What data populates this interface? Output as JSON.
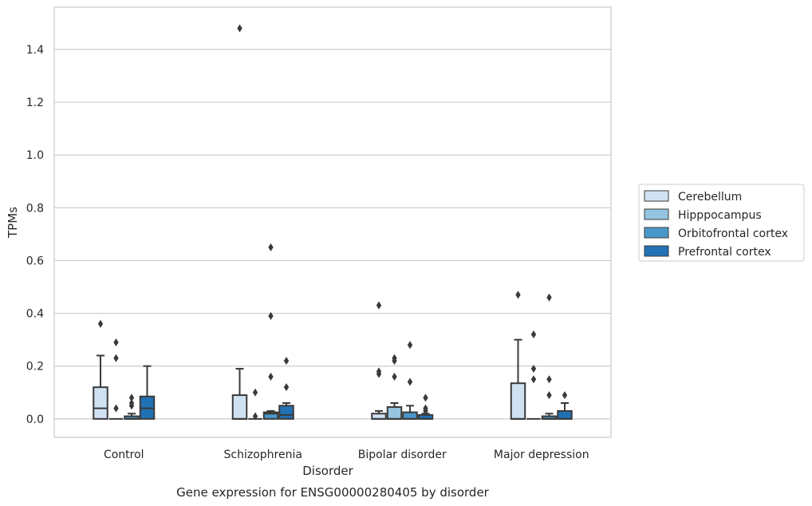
{
  "chart_data": {
    "type": "box",
    "title": "Gene expression for ENSG00000280405 by disorder",
    "xlabel": "Disorder",
    "ylabel": "TPMs",
    "ylim": [
      -0.07,
      1.56
    ],
    "yticks": [
      0.0,
      0.2,
      0.4,
      0.6,
      0.8,
      1.0,
      1.2,
      1.4
    ],
    "ytick_labels": [
      "0.0",
      "0.2",
      "0.4",
      "0.6",
      "0.8",
      "1.0",
      "1.2",
      "1.4"
    ],
    "grid": true,
    "legend_position": "right",
    "categories": [
      "Control",
      "Schizophrenia",
      "Bipolar disorder",
      "Major depression"
    ],
    "series": [
      {
        "name": "Cerebellum",
        "color": "#d0e1f2",
        "boxes": [
          {
            "q1": 0.0,
            "median": 0.04,
            "q3": 0.12,
            "whisker_low": 0.0,
            "whisker_high": 0.24,
            "outliers": [
              0.36
            ]
          },
          {
            "q1": 0.0,
            "median": 0.0,
            "q3": 0.09,
            "whisker_low": 0.0,
            "whisker_high": 0.19,
            "outliers": [
              1.48
            ]
          },
          {
            "q1": 0.0,
            "median": 0.0,
            "q3": 0.02,
            "whisker_low": 0.0,
            "whisker_high": 0.03,
            "outliers": [
              0.17,
              0.18,
              0.43
            ]
          },
          {
            "q1": 0.0,
            "median": 0.0,
            "q3": 0.135,
            "whisker_low": 0.0,
            "whisker_high": 0.3,
            "outliers": [
              0.47
            ]
          }
        ]
      },
      {
        "name": "Hipppocampus",
        "color": "#94c4df",
        "boxes": [
          {
            "q1": 0.0,
            "median": 0.0,
            "q3": 0.0,
            "whisker_low": 0.0,
            "whisker_high": 0.0,
            "outliers": [
              0.04,
              0.23,
              0.29
            ]
          },
          {
            "q1": 0.0,
            "median": 0.0,
            "q3": 0.0,
            "whisker_low": 0.0,
            "whisker_high": 0.0,
            "outliers": [
              0.01,
              0.1
            ]
          },
          {
            "q1": 0.0,
            "median": 0.0,
            "q3": 0.045,
            "whisker_low": 0.0,
            "whisker_high": 0.06,
            "outliers": [
              0.16,
              0.22,
              0.23
            ]
          },
          {
            "q1": 0.0,
            "median": 0.0,
            "q3": 0.0,
            "whisker_low": 0.0,
            "whisker_high": 0.0,
            "outliers": [
              0.15,
              0.19,
              0.32
            ]
          }
        ]
      },
      {
        "name": "Orbitofrontal cortex",
        "color": "#4a98c9",
        "boxes": [
          {
            "q1": 0.0,
            "median": 0.0,
            "q3": 0.01,
            "whisker_low": 0.0,
            "whisker_high": 0.02,
            "outliers": [
              0.05,
              0.06,
              0.08
            ]
          },
          {
            "q1": 0.0,
            "median": 0.02,
            "q3": 0.025,
            "whisker_low": 0.0,
            "whisker_high": 0.03,
            "outliers": [
              0.16,
              0.39,
              0.65
            ]
          },
          {
            "q1": 0.0,
            "median": 0.0,
            "q3": 0.025,
            "whisker_low": 0.0,
            "whisker_high": 0.05,
            "outliers": [
              0.14,
              0.28
            ]
          },
          {
            "q1": 0.0,
            "median": 0.0,
            "q3": 0.01,
            "whisker_low": 0.0,
            "whisker_high": 0.02,
            "outliers": [
              0.09,
              0.15,
              0.46
            ]
          }
        ]
      },
      {
        "name": "Prefrontal cortex",
        "color": "#2171b5",
        "boxes": [
          {
            "q1": 0.0,
            "median": 0.04,
            "q3": 0.085,
            "whisker_low": 0.0,
            "whisker_high": 0.2,
            "outliers": []
          },
          {
            "q1": 0.0,
            "median": 0.015,
            "q3": 0.05,
            "whisker_low": 0.0,
            "whisker_high": 0.06,
            "outliers": [
              0.12,
              0.22
            ]
          },
          {
            "q1": 0.0,
            "median": 0.0,
            "q3": 0.015,
            "whisker_low": 0.0,
            "whisker_high": 0.02,
            "outliers": [
              0.03,
              0.04,
              0.08
            ]
          },
          {
            "q1": 0.0,
            "median": 0.0,
            "q3": 0.03,
            "whisker_low": 0.0,
            "whisker_high": 0.06,
            "outliers": [
              0.09
            ]
          }
        ]
      }
    ]
  }
}
